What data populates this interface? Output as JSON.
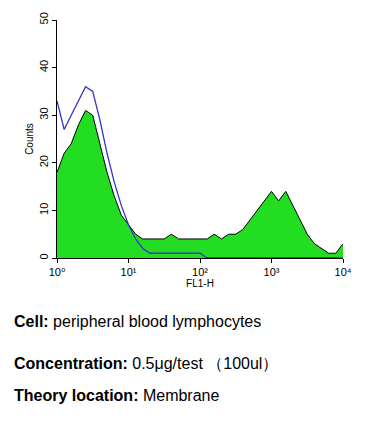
{
  "chart_data": {
    "type": "histogram",
    "x_label": "FL1-H",
    "y_label": "Counts",
    "log": "x",
    "grid": false,
    "x": [
      1,
      1.26,
      1.58,
      2.0,
      2.51,
      3.16,
      3.98,
      5.01,
      6.31,
      7.94,
      10,
      12.6,
      15.8,
      20,
      25.1,
      31.6,
      39.8,
      50.1,
      63.1,
      79.4,
      100,
      126,
      158,
      200,
      251,
      316,
      398,
      501,
      631,
      794,
      1000,
      1259,
      1585,
      1995,
      2512,
      3162,
      3981,
      5012,
      6310,
      7943,
      10000
    ],
    "series": [
      {
        "type": "area",
        "color": "#22dd22",
        "values": [
          18,
          22,
          24,
          28,
          31,
          30,
          24,
          18,
          13,
          9,
          7,
          5,
          4,
          4,
          4,
          4,
          5,
          4,
          4,
          4,
          4,
          4,
          5,
          4,
          5,
          5,
          6,
          8,
          10,
          12,
          14,
          12,
          14,
          11,
          8,
          5,
          3,
          2,
          1,
          1,
          3
        ]
      },
      {
        "type": "line",
        "color": "#3333cc",
        "values": [
          33,
          27,
          30,
          33,
          36,
          35,
          29,
          22,
          16,
          11,
          7,
          4,
          2,
          1,
          1,
          1,
          1,
          1,
          1,
          1,
          1,
          0,
          0,
          0,
          0,
          0,
          0,
          0,
          0,
          0,
          0,
          0,
          0,
          0,
          0,
          0,
          0,
          0,
          0,
          0,
          0
        ]
      }
    ],
    "xlim": [
      1,
      10000
    ],
    "xticks": [
      {
        "value": 1,
        "label": "10⁰"
      },
      {
        "value": 10,
        "label": "10¹"
      },
      {
        "value": 100,
        "label": "10²"
      },
      {
        "value": 1000,
        "label": "10³"
      },
      {
        "value": 10000,
        "label": "10⁴"
      }
    ],
    "ylim": [
      0,
      50
    ],
    "yticks": [
      0,
      10,
      20,
      30,
      40,
      50
    ],
    "annotations": [
      {
        "label": "Cell:",
        "text": "peripheral blood lymphocytes"
      },
      {
        "label": "Concentration:",
        "text": "0.5μg/test （100ul）"
      },
      {
        "label": "Theory location:",
        "text": "Membrane"
      }
    ]
  }
}
